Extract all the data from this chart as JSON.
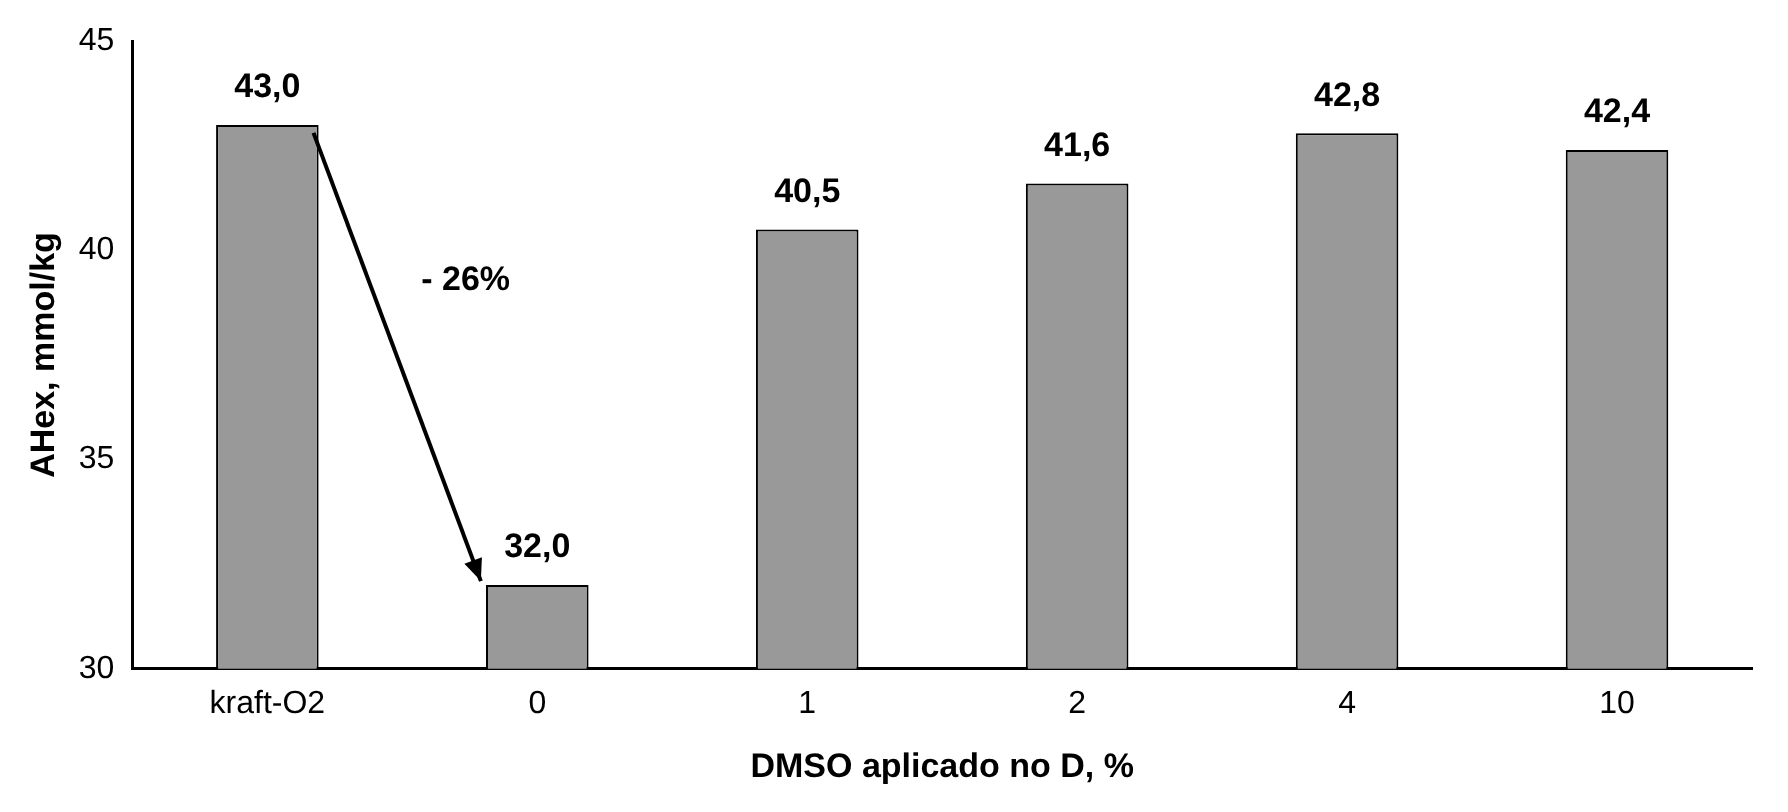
{
  "chart_data": {
    "type": "bar",
    "xlabel": "DMSO aplicado no D, %",
    "ylabel": "AHex, mmol/kg",
    "categories": [
      "kraft-O2",
      "0",
      "1",
      "2",
      "4",
      "10"
    ],
    "values": [
      43.0,
      32.0,
      40.5,
      41.6,
      42.8,
      42.4
    ],
    "value_labels": [
      "43,0",
      "32,0",
      "40,5",
      "41,6",
      "42,8",
      "42,4"
    ],
    "color": "#999999",
    "ylim": [
      30,
      45
    ],
    "yticks": [
      30,
      35,
      40,
      45
    ],
    "grid": false,
    "legend": false,
    "annotations": [
      "- 26%"
    ]
  }
}
